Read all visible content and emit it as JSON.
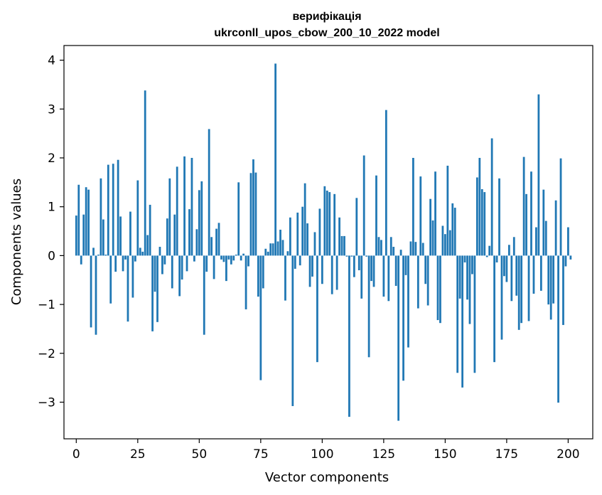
{
  "chart_data": {
    "type": "bar",
    "title": "верифікація",
    "subtitle": "ukrconll_upos_cbow_200_10_2022 model",
    "xlabel": "Vector components",
    "ylabel": "Components values",
    "xlim": [
      -5,
      210
    ],
    "ylim": [
      -3.75,
      4.3
    ],
    "xticks": [
      0,
      25,
      50,
      75,
      100,
      125,
      150,
      175,
      200
    ],
    "yticks": [
      -3,
      -2,
      -1,
      0,
      1,
      2,
      3,
      4
    ],
    "bar_color": "#1f77b4",
    "grid": false,
    "series": [
      {
        "values": [
          0.82,
          1.45,
          -0.18,
          0.84,
          1.4,
          1.35,
          -1.47,
          0.16,
          -1.62,
          0.02,
          1.58,
          0.74,
          0.02,
          1.86,
          -0.98,
          1.88,
          -0.33,
          1.96,
          0.8,
          -0.32,
          -0.08,
          -1.35,
          0.9,
          -0.86,
          -0.12,
          1.54,
          0.16,
          0.08,
          3.38,
          0.42,
          1.04,
          -1.55,
          -0.74,
          -1.36,
          0.18,
          -0.38,
          -0.18,
          0.76,
          1.58,
          -0.67,
          0.84,
          1.82,
          -0.83,
          -0.49,
          2.03,
          -0.32,
          0.95,
          2.0,
          -0.12,
          0.54,
          1.34,
          1.52,
          -1.62,
          -0.33,
          2.59,
          0.38,
          -0.48,
          0.55,
          0.67,
          -0.08,
          -0.13,
          -0.52,
          -0.08,
          -0.18,
          -0.1,
          0.02,
          1.5,
          -0.1,
          0.04,
          -1.1,
          -0.22,
          1.69,
          1.97,
          1.7,
          -0.84,
          -2.55,
          -0.67,
          0.14,
          0.08,
          0.25,
          0.25,
          3.93,
          0.29,
          0.53,
          0.32,
          -0.92,
          0.09,
          0.78,
          -3.08,
          -0.27,
          0.88,
          -0.2,
          1.0,
          1.48,
          0.66,
          -0.64,
          -0.43,
          0.48,
          -2.18,
          0.96,
          -0.58,
          1.42,
          1.33,
          1.3,
          -0.79,
          1.26,
          -0.7,
          0.78,
          0.4,
          0.4,
          -0.02,
          -3.3,
          -0.02,
          -0.44,
          1.18,
          -0.3,
          -0.88,
          2.05,
          -0.02,
          -2.08,
          -0.52,
          -0.64,
          1.64,
          0.38,
          0.32,
          -0.84,
          2.98,
          -0.93,
          0.38,
          0.18,
          -0.62,
          -3.38,
          0.12,
          -2.56,
          -0.4,
          -1.88,
          0.29,
          2.0,
          0.28,
          -1.08,
          1.62,
          0.26,
          -0.58,
          -1.02,
          1.16,
          0.72,
          1.72,
          -1.32,
          -1.38,
          0.61,
          0.44,
          1.84,
          0.52,
          1.07,
          0.98,
          -2.4,
          -0.88,
          -2.7,
          -0.14,
          -0.9,
          -1.4,
          -0.38,
          -2.4,
          1.6,
          2.0,
          1.36,
          1.3,
          -0.03,
          0.2,
          2.4,
          -2.18,
          -0.14,
          1.58,
          -1.72,
          -0.42,
          -0.54,
          0.22,
          -0.93,
          0.38,
          -0.82,
          -1.52,
          -1.38,
          2.02,
          1.26,
          -1.34,
          1.72,
          -0.78,
          0.58,
          3.3,
          -0.72,
          1.35,
          0.71,
          -1.0,
          -1.31,
          -0.98,
          1.13,
          -3.01,
          1.99,
          -1.42,
          -0.22,
          0.58,
          -0.08
        ]
      }
    ]
  }
}
